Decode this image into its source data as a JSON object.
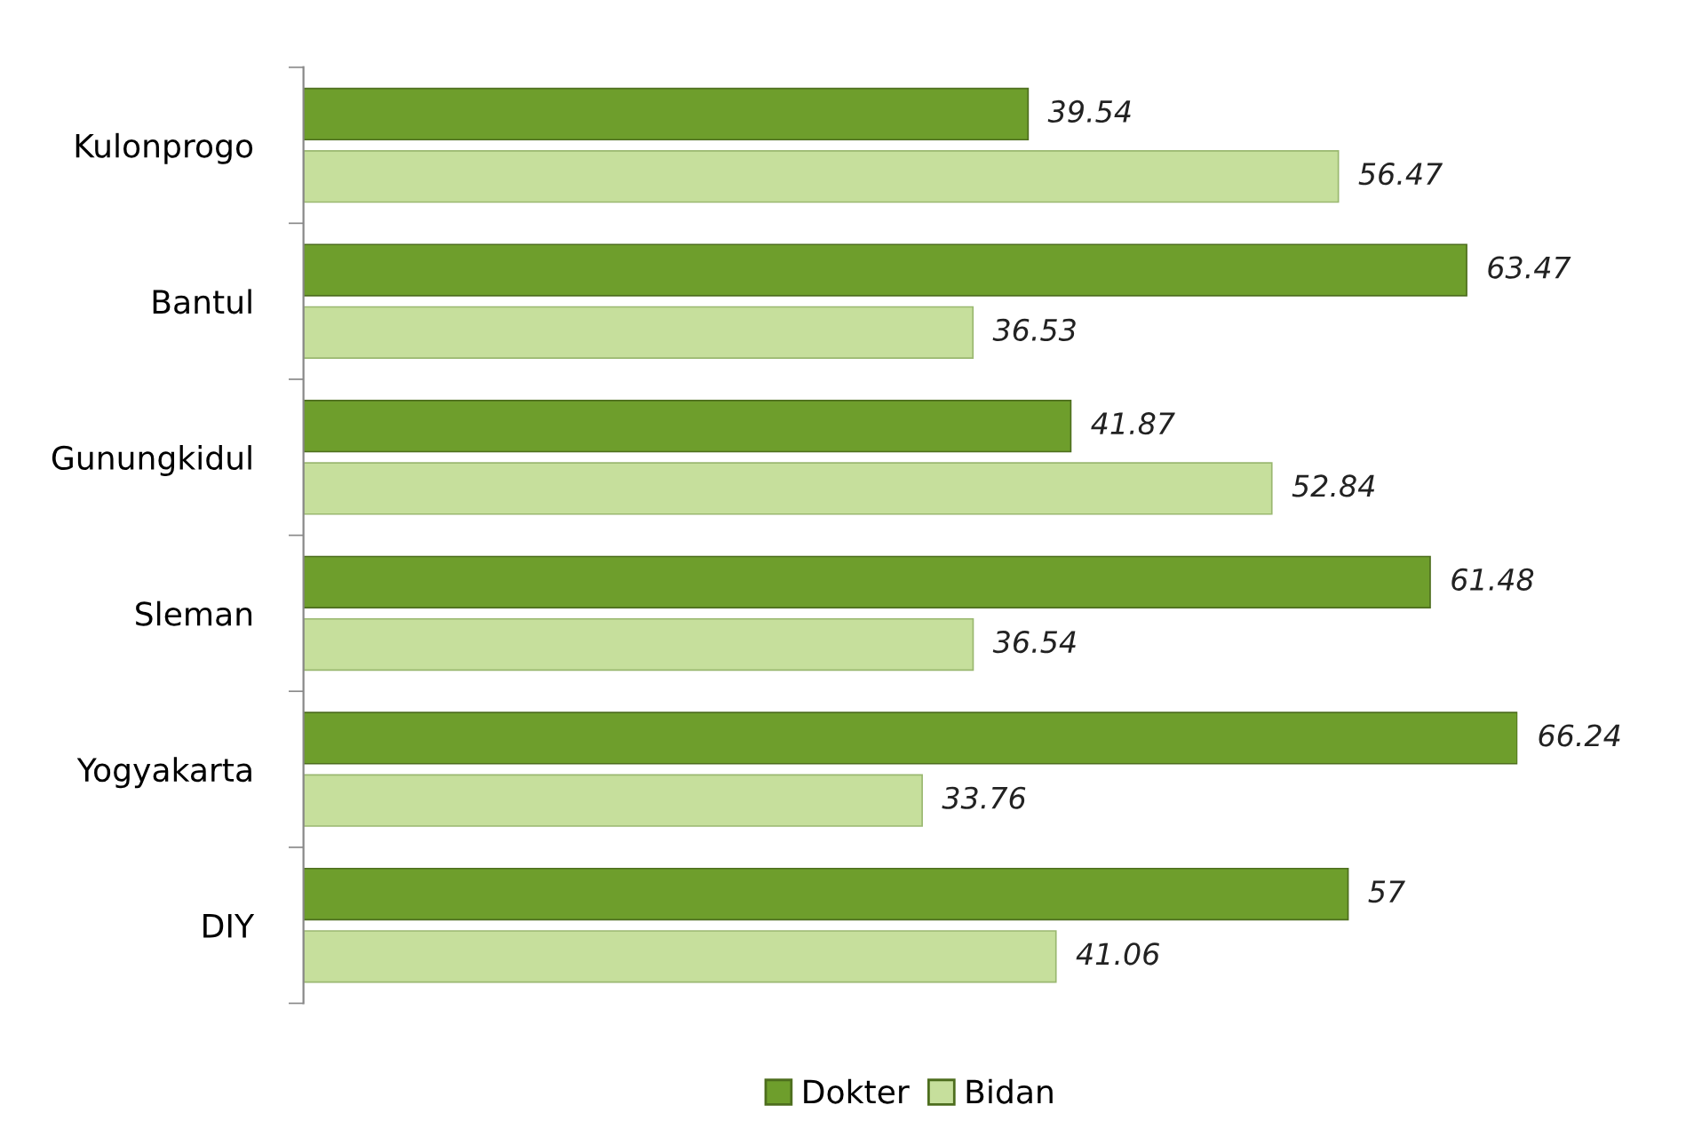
{
  "chart_data": {
    "type": "bar",
    "orientation": "horizontal",
    "categories": [
      "Kulonprogo",
      "Bantul",
      "Gunungkidul",
      "Sleman",
      "Yogyakarta",
      "DIY"
    ],
    "series": [
      {
        "name": "Dokter",
        "color": "#6e9e2c",
        "values": [
          39.54,
          63.47,
          41.87,
          61.48,
          66.24,
          57
        ]
      },
      {
        "name": "Bidan",
        "color": "#c6df9c",
        "values": [
          56.47,
          36.53,
          52.84,
          36.54,
          33.76,
          41.06
        ]
      }
    ],
    "data_labels": true,
    "legend": "bottom",
    "grid": false,
    "tick_labels": "y"
  }
}
